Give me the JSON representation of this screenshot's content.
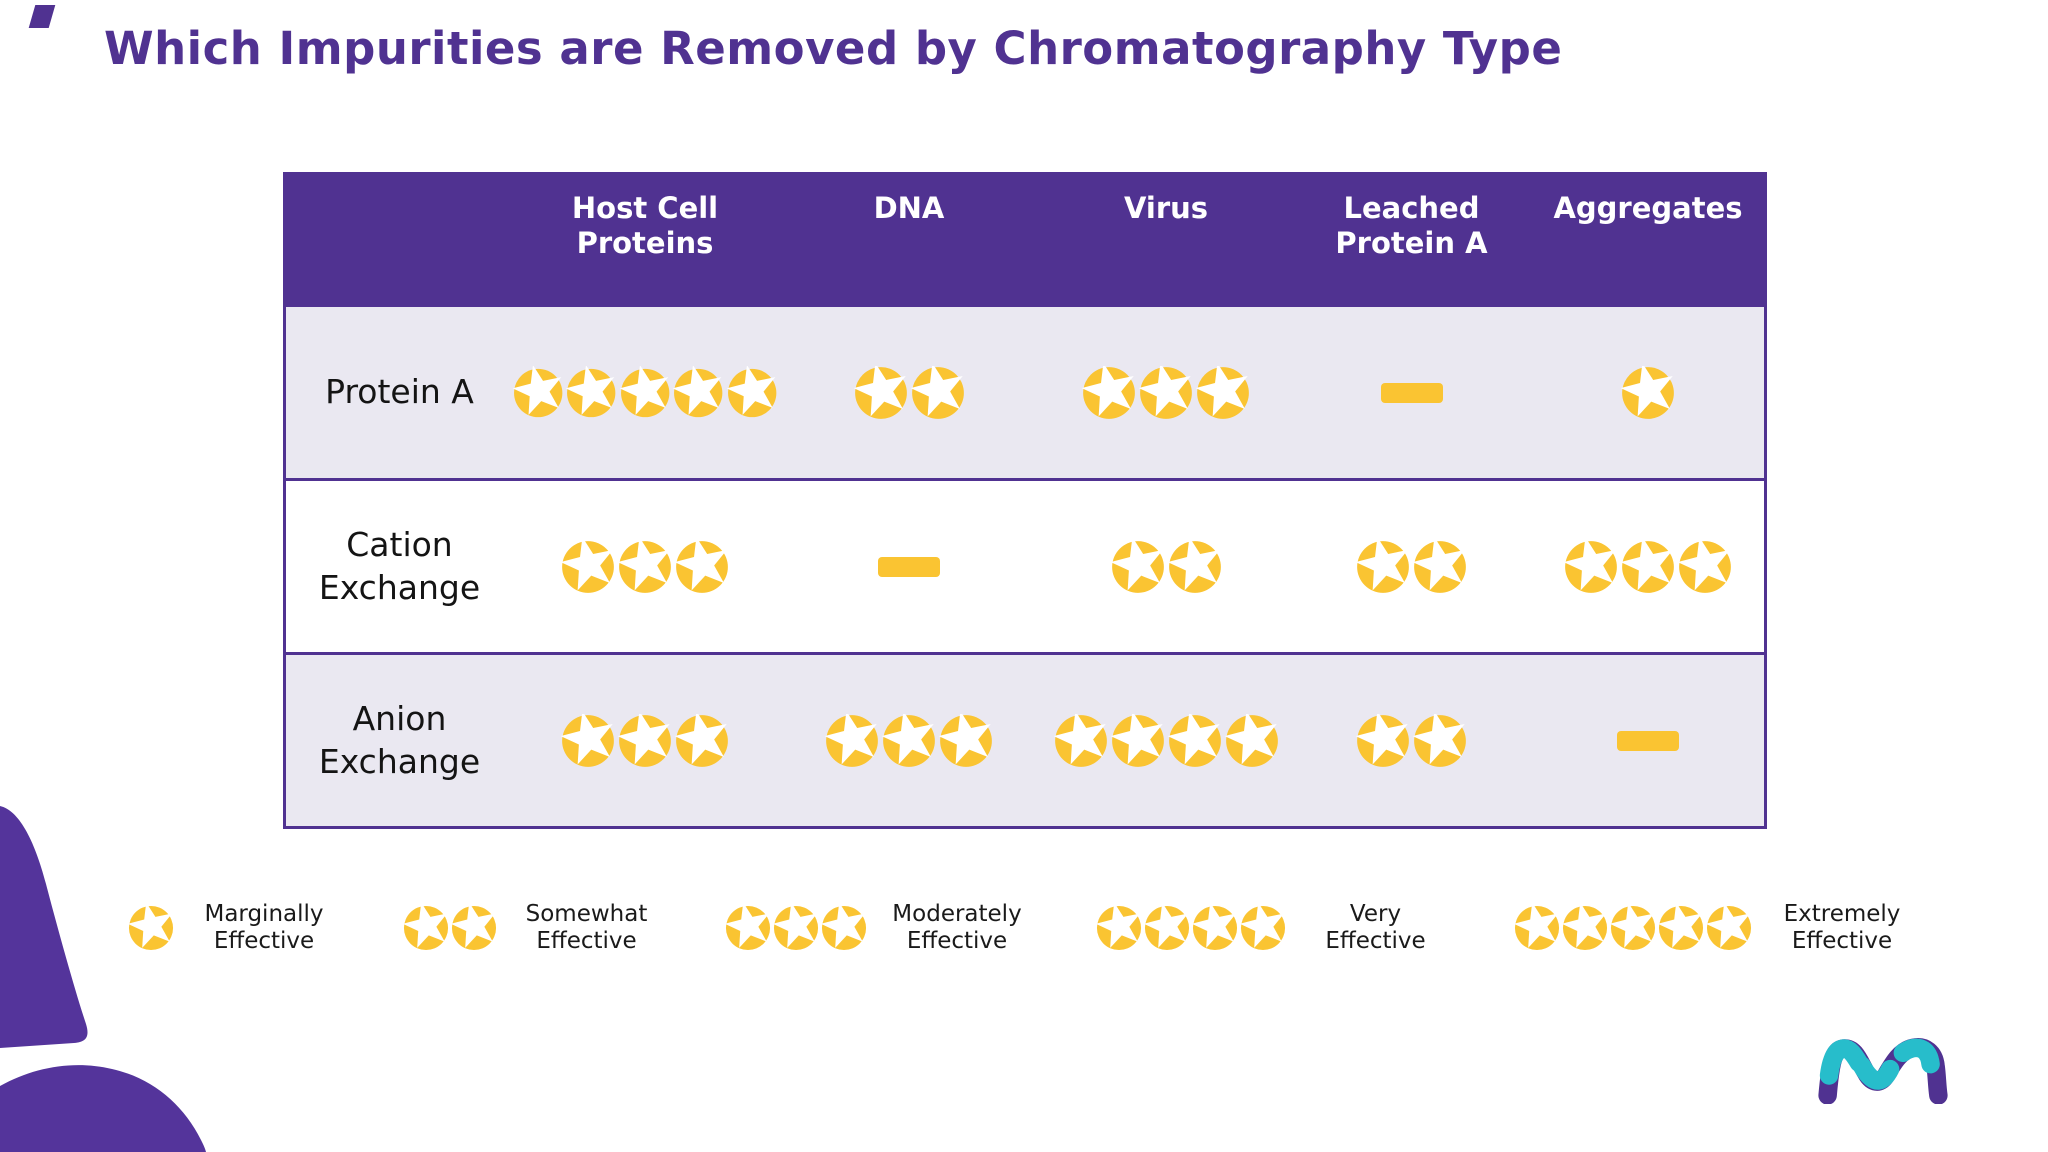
{
  "title": "Which Impurities are Removed by Chromatography Type",
  "table": {
    "header": [
      "Host Cell Proteins",
      "DNA",
      "Virus",
      "Leached Protein A",
      "Aggregates"
    ],
    "rows": [
      {
        "label": "Protein A",
        "ratings": [
          5,
          2,
          3,
          0,
          1
        ]
      },
      {
        "label": "Cation Exchange",
        "ratings": [
          3,
          0,
          2,
          2,
          3
        ]
      },
      {
        "label": "Anion Exchange",
        "ratings": [
          3,
          3,
          4,
          2,
          0
        ]
      }
    ]
  },
  "legend": [
    {
      "stars": 1,
      "label": "Marginally Effective"
    },
    {
      "stars": 2,
      "label": "Somewhat Effective"
    },
    {
      "stars": 3,
      "label": "Moderately Effective"
    },
    {
      "stars": 4,
      "label": "Very Effective"
    },
    {
      "stars": 5,
      "label": "Extremely Effective"
    }
  ],
  "chart_data": {
    "type": "table",
    "title": "Which Impurities are Removed by Chromatography Type",
    "columns": [
      "Host Cell Proteins",
      "DNA",
      "Virus",
      "Leached Protein A",
      "Aggregates"
    ],
    "rows": [
      "Protein A",
      "Cation Exchange",
      "Anion Exchange"
    ],
    "values": [
      [
        5,
        2,
        3,
        0,
        1
      ],
      [
        3,
        0,
        2,
        2,
        3
      ],
      [
        3,
        3,
        4,
        2,
        0
      ]
    ],
    "value_encoding": "number of stars; 0 = yellow dash shown in cell",
    "scale": {
      "1": "Marginally Effective",
      "2": "Somewhat Effective",
      "3": "Moderately Effective",
      "4": "Very Effective",
      "5": "Extremely Effective"
    },
    "legend_position": "bottom"
  },
  "icons": {
    "rating": "star-in-circle-icon",
    "no_rating": "dash-icon",
    "logo": "merck-m-logo"
  },
  "colors": {
    "brand_purple": "#503291",
    "star_yellow": "#FAC432",
    "row_alt_lavender": "#EAE8F1",
    "logo_cyan": "#27BDCB",
    "text_dark": "#1a1a1a"
  }
}
